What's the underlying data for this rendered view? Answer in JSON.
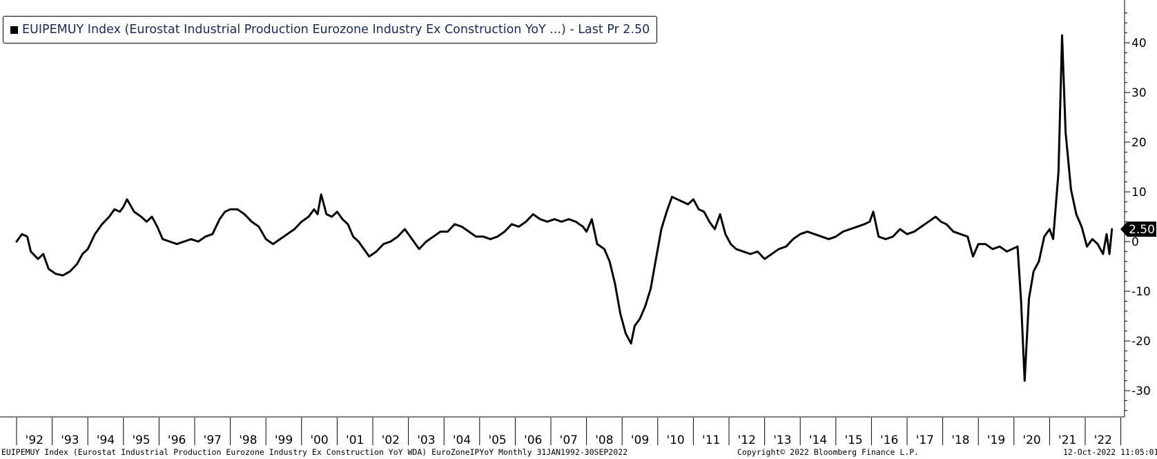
{
  "legend": {
    "label": "EUIPEMUY Index (Eurostat Industrial Production Eurozone Industry Ex Construction YoY ...) - Last Pr 2.50",
    "color": "#000000"
  },
  "footer": {
    "description": "EUIPEMUY Index (Eurostat Industrial Production Eurozone Industry Ex Construction YoY WDA) EuroZoneIPYoY  Monthly 31JAN1992-30SEP2022",
    "copyright": "Copyright© 2022 Bloomberg Finance L.P.",
    "timestamp": "12-Oct-2022 11:05:01"
  },
  "last_value_label": "2.50",
  "chart_data": {
    "type": "line",
    "title": "",
    "xlabel": "",
    "ylabel": "",
    "x_range": [
      1992.0,
      2022.75
    ],
    "ylim": [
      -35,
      48
    ],
    "y_axis_side": "right",
    "y_ticks": [
      40,
      30,
      20,
      10,
      0,
      -10,
      -20,
      -30
    ],
    "y_tick_labels": [
      "40",
      "30",
      "20",
      "10",
      "0",
      "-10",
      "-20",
      "-30"
    ],
    "x_tick_labels": [
      "'92",
      "'93",
      "'94",
      "'95",
      "'96",
      "'97",
      "'98",
      "'99",
      "'00",
      "'01",
      "'02",
      "'03",
      "'04",
      "'05",
      "'06",
      "'07",
      "'08",
      "'09",
      "'10",
      "'11",
      "'12",
      "'13",
      "'14",
      "'15",
      "'16",
      "'17",
      "'18",
      "'19",
      "'20",
      "'21",
      "'22"
    ],
    "grid": false,
    "legend_position": "top-left",
    "line_color": "#000000",
    "last_value": 2.5,
    "series": [
      {
        "values": [
          [
            1992.0,
            0
          ],
          [
            1992.15,
            1.5
          ],
          [
            1992.3,
            1.0
          ],
          [
            1992.4,
            -2.0
          ],
          [
            1992.6,
            -3.5
          ],
          [
            1992.75,
            -2.5
          ],
          [
            1992.9,
            -5.5
          ],
          [
            1993.1,
            -6.5
          ],
          [
            1993.3,
            -6.8
          ],
          [
            1993.5,
            -6.0
          ],
          [
            1993.7,
            -4.5
          ],
          [
            1993.85,
            -2.5
          ],
          [
            1994.0,
            -1.5
          ],
          [
            1994.2,
            1.5
          ],
          [
            1994.4,
            3.5
          ],
          [
            1994.6,
            5.0
          ],
          [
            1994.75,
            6.5
          ],
          [
            1994.9,
            6.0
          ],
          [
            1995.0,
            7.0
          ],
          [
            1995.1,
            8.5
          ],
          [
            1995.3,
            6.0
          ],
          [
            1995.5,
            5.0
          ],
          [
            1995.65,
            4.0
          ],
          [
            1995.8,
            5.0
          ],
          [
            1995.95,
            3.0
          ],
          [
            1996.1,
            0.5
          ],
          [
            1996.3,
            0.0
          ],
          [
            1996.5,
            -0.5
          ],
          [
            1996.7,
            0.0
          ],
          [
            1996.9,
            0.5
          ],
          [
            1997.1,
            0.0
          ],
          [
            1997.3,
            1.0
          ],
          [
            1997.5,
            1.5
          ],
          [
            1997.7,
            4.5
          ],
          [
            1997.85,
            6.0
          ],
          [
            1998.0,
            6.5
          ],
          [
            1998.2,
            6.5
          ],
          [
            1998.4,
            5.5
          ],
          [
            1998.6,
            4.0
          ],
          [
            1998.8,
            3.0
          ],
          [
            1999.0,
            0.5
          ],
          [
            1999.2,
            -0.5
          ],
          [
            1999.4,
            0.5
          ],
          [
            1999.6,
            1.5
          ],
          [
            1999.8,
            2.5
          ],
          [
            2000.0,
            4.0
          ],
          [
            2000.2,
            5.0
          ],
          [
            2000.35,
            6.5
          ],
          [
            2000.45,
            5.5
          ],
          [
            2000.55,
            9.5
          ],
          [
            2000.7,
            5.5
          ],
          [
            2000.85,
            5.0
          ],
          [
            2001.0,
            6.0
          ],
          [
            2001.15,
            4.5
          ],
          [
            2001.3,
            3.5
          ],
          [
            2001.45,
            1.0
          ],
          [
            2001.6,
            0.0
          ],
          [
            2001.75,
            -1.5
          ],
          [
            2001.9,
            -3.0
          ],
          [
            2002.1,
            -2.0
          ],
          [
            2002.3,
            -0.5
          ],
          [
            2002.5,
            0.0
          ],
          [
            2002.7,
            1.0
          ],
          [
            2002.9,
            2.5
          ],
          [
            2003.1,
            0.5
          ],
          [
            2003.3,
            -1.5
          ],
          [
            2003.5,
            0.0
          ],
          [
            2003.7,
            1.0
          ],
          [
            2003.9,
            2.0
          ],
          [
            2004.1,
            2.0
          ],
          [
            2004.3,
            3.5
          ],
          [
            2004.5,
            3.0
          ],
          [
            2004.7,
            2.0
          ],
          [
            2004.9,
            1.0
          ],
          [
            2005.1,
            1.0
          ],
          [
            2005.3,
            0.5
          ],
          [
            2005.5,
            1.0
          ],
          [
            2005.7,
            2.0
          ],
          [
            2005.9,
            3.5
          ],
          [
            2006.1,
            3.0
          ],
          [
            2006.3,
            4.0
          ],
          [
            2006.5,
            5.5
          ],
          [
            2006.7,
            4.5
          ],
          [
            2006.9,
            4.0
          ],
          [
            2007.1,
            4.5
          ],
          [
            2007.3,
            4.0
          ],
          [
            2007.5,
            4.5
          ],
          [
            2007.7,
            4.0
          ],
          [
            2007.9,
            3.0
          ],
          [
            2008.0,
            2.0
          ],
          [
            2008.15,
            4.5
          ],
          [
            2008.3,
            -0.5
          ],
          [
            2008.5,
            -1.5
          ],
          [
            2008.65,
            -4.0
          ],
          [
            2008.8,
            -8.5
          ],
          [
            2008.95,
            -14.5
          ],
          [
            2009.1,
            -18.5
          ],
          [
            2009.25,
            -20.5
          ],
          [
            2009.35,
            -17.0
          ],
          [
            2009.5,
            -15.5
          ],
          [
            2009.65,
            -13.0
          ],
          [
            2009.8,
            -9.5
          ],
          [
            2009.95,
            -3.5
          ],
          [
            2010.1,
            2.5
          ],
          [
            2010.25,
            6.0
          ],
          [
            2010.4,
            9.0
          ],
          [
            2010.55,
            8.5
          ],
          [
            2010.7,
            8.0
          ],
          [
            2010.85,
            7.5
          ],
          [
            2011.0,
            8.5
          ],
          [
            2011.15,
            6.5
          ],
          [
            2011.3,
            6.0
          ],
          [
            2011.45,
            4.0
          ],
          [
            2011.6,
            2.5
          ],
          [
            2011.75,
            5.5
          ],
          [
            2011.9,
            1.5
          ],
          [
            2012.05,
            -0.5
          ],
          [
            2012.2,
            -1.5
          ],
          [
            2012.4,
            -2.0
          ],
          [
            2012.6,
            -2.5
          ],
          [
            2012.8,
            -2.0
          ],
          [
            2013.0,
            -3.5
          ],
          [
            2013.2,
            -2.5
          ],
          [
            2013.4,
            -1.5
          ],
          [
            2013.6,
            -1.0
          ],
          [
            2013.8,
            0.5
          ],
          [
            2014.0,
            1.5
          ],
          [
            2014.2,
            2.0
          ],
          [
            2014.4,
            1.5
          ],
          [
            2014.6,
            1.0
          ],
          [
            2014.8,
            0.5
          ],
          [
            2015.0,
            1.0
          ],
          [
            2015.2,
            2.0
          ],
          [
            2015.4,
            2.5
          ],
          [
            2015.6,
            3.0
          ],
          [
            2015.8,
            3.5
          ],
          [
            2015.95,
            4.0
          ],
          [
            2016.05,
            6.0
          ],
          [
            2016.2,
            1.0
          ],
          [
            2016.4,
            0.5
          ],
          [
            2016.6,
            1.0
          ],
          [
            2016.8,
            2.5
          ],
          [
            2017.0,
            1.5
          ],
          [
            2017.2,
            2.0
          ],
          [
            2017.4,
            3.0
          ],
          [
            2017.6,
            4.0
          ],
          [
            2017.8,
            5.0
          ],
          [
            2017.95,
            4.0
          ],
          [
            2018.1,
            3.5
          ],
          [
            2018.3,
            2.0
          ],
          [
            2018.5,
            1.5
          ],
          [
            2018.7,
            1.0
          ],
          [
            2018.85,
            -3.0
          ],
          [
            2019.0,
            -0.5
          ],
          [
            2019.2,
            -0.5
          ],
          [
            2019.4,
            -1.5
          ],
          [
            2019.6,
            -1.0
          ],
          [
            2019.8,
            -2.0
          ],
          [
            2019.95,
            -1.5
          ],
          [
            2020.1,
            -1.0
          ],
          [
            2020.2,
            -12.0
          ],
          [
            2020.3,
            -28.0
          ],
          [
            2020.42,
            -11.5
          ],
          [
            2020.55,
            -6.0
          ],
          [
            2020.7,
            -4.0
          ],
          [
            2020.85,
            1.0
          ],
          [
            2021.0,
            2.5
          ],
          [
            2021.1,
            0.5
          ],
          [
            2021.25,
            14.0
          ],
          [
            2021.35,
            41.5
          ],
          [
            2021.45,
            22.0
          ],
          [
            2021.6,
            10.5
          ],
          [
            2021.75,
            5.5
          ],
          [
            2021.9,
            3.0
          ],
          [
            2022.05,
            -1.0
          ],
          [
            2022.2,
            0.5
          ],
          [
            2022.35,
            -0.5
          ],
          [
            2022.5,
            -2.5
          ],
          [
            2022.6,
            1.5
          ],
          [
            2022.68,
            -2.5
          ],
          [
            2022.75,
            2.5
          ]
        ]
      }
    ]
  }
}
